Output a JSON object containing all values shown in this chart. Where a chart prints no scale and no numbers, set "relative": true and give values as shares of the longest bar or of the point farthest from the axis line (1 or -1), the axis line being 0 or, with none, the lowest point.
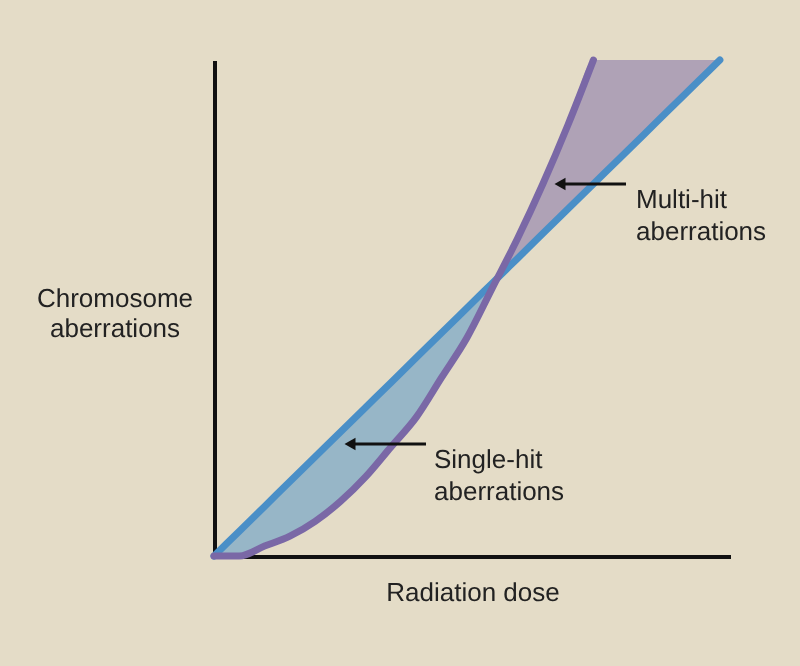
{
  "chart_data": {
    "type": "line",
    "relative": true,
    "xlabel": "Radiation dose",
    "ylabel": "Chromosome aberrations",
    "categories": [
      null,
      null,
      null,
      null,
      null,
      null,
      null,
      null,
      null,
      null,
      null,
      null,
      null,
      null,
      null,
      null,
      null,
      null,
      null,
      null,
      null
    ],
    "series": [
      {
        "color": "#4a8fc7",
        "values": [
          0,
          0.05,
          0.1,
          0.15,
          0.2,
          0.25,
          0.3,
          0.35,
          0.4,
          0.45,
          0.5,
          0.55,
          0.6,
          0.65,
          0.7,
          0.75,
          0.8,
          0.85,
          0.9,
          0.95,
          1
        ],
        "lower": [
          0,
          0,
          0.02,
          0.04,
          0.07,
          0.11,
          0.16,
          0.22,
          0.28,
          0.36,
          0.44,
          0.54,
          null,
          null,
          null,
          null,
          null,
          null,
          null,
          null,
          null
        ],
        "upper": [
          0,
          0.05,
          0.1,
          0.15,
          0.2,
          0.25,
          0.3,
          0.35,
          0.4,
          0.45,
          0.5,
          0.55,
          null,
          null,
          null,
          null,
          null,
          null,
          null,
          null,
          null
        ]
      },
      {
        "color": "#7a68a6",
        "values": [
          0,
          0,
          0.02,
          0.04,
          0.07,
          0.11,
          0.16,
          0.22,
          0.28,
          0.36,
          0.44,
          0.54,
          0.64,
          0.75,
          0.87,
          1,
          null,
          null,
          null,
          null,
          null
        ],
        "lower": [
          null,
          null,
          null,
          null,
          null,
          null,
          null,
          null,
          null,
          null,
          null,
          0.55,
          0.6,
          0.65,
          0.7,
          0.75,
          0.8,
          0.85,
          0.9,
          0.95,
          1
        ],
        "upper": [
          null,
          null,
          null,
          null,
          null,
          null,
          null,
          null,
          null,
          null,
          null,
          0.54,
          0.64,
          0.75,
          0.87,
          1,
          1,
          1,
          1,
          1,
          1
        ]
      }
    ],
    "line_style": "solid",
    "marker": "none",
    "grid": false,
    "annotations": [
      "Multi-hit aberrations",
      "Single-hit aberrations"
    ]
  }
}
